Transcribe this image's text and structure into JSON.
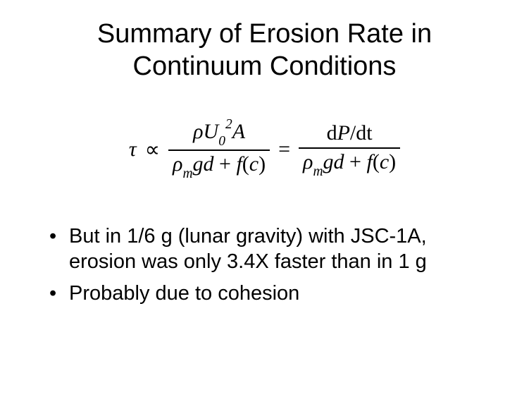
{
  "title_line1": "Summary of Erosion Rate in",
  "title_line2": "Continuum Conditions",
  "equation": {
    "tau": "τ",
    "propto": "∝",
    "equals": "=",
    "frac1_num": {
      "rho": "ρ",
      "U": "U",
      "sub0": "0",
      "sup2": "2",
      "A": "A"
    },
    "frac_den": {
      "rho": "ρ",
      "subm": "m",
      "g": "g",
      "d": "d",
      "plus": " + ",
      "f": "f",
      "lp": "(",
      "c": "c",
      "rp": ")"
    },
    "frac2_num": {
      "d1": "d",
      "P": "P",
      "slash": "/",
      "d2": "d",
      "t": "t"
    }
  },
  "bullets": [
    "But in 1/6 g (lunar gravity) with JSC-1A, erosion was only 3.4X faster than in 1 g",
    "Probably due to cohesion"
  ],
  "colors": {
    "bg": "#ffffff",
    "text": "#000000"
  },
  "fonts": {
    "title_size": 38,
    "body_size": 29,
    "eq_size": 30
  }
}
